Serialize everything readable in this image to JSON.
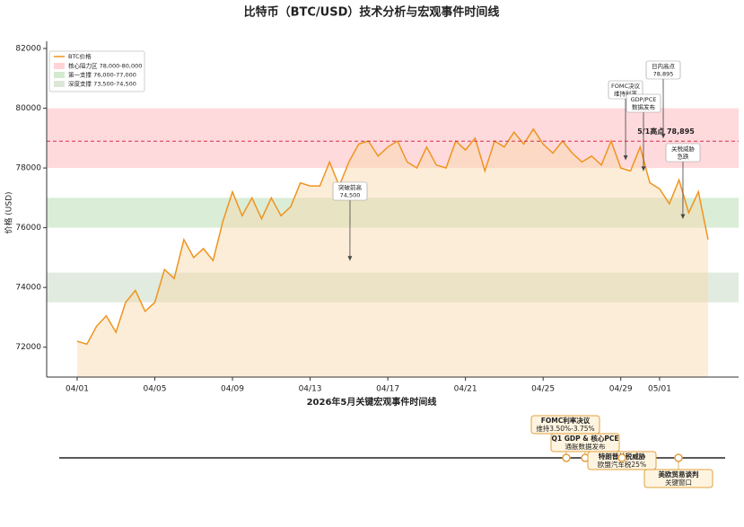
{
  "chart_data": {
    "type": "line",
    "title": "比特币（BTC/USD）技术分析与宏观事件时间线",
    "y_label": "价格 (USD)",
    "x_label": "2026年5月关键宏观事件时间线",
    "x": [
      0,
      0.5,
      1,
      1.5,
      2,
      2.5,
      3,
      3.5,
      4,
      4.5,
      5,
      5.5,
      6,
      6.5,
      7,
      7.5,
      8,
      8.5,
      9,
      9.5,
      10,
      10.5,
      11,
      11.5,
      12,
      12.5,
      13,
      13.5,
      14,
      14.5,
      15,
      15.5,
      16,
      16.5,
      17,
      17.5,
      18,
      18.5,
      19,
      19.5,
      20,
      20.5,
      21,
      21.5,
      22,
      22.5,
      23,
      23.5,
      24,
      24.5,
      25,
      25.5,
      26,
      26.5,
      27,
      27.5,
      28,
      28.5,
      29,
      29.5,
      30,
      30.5,
      31,
      31.5,
      32,
      32.5
    ],
    "series": [
      {
        "name": "BTC价格",
        "color": "#ee9420",
        "values": [
          72200,
          72100,
          72700,
          73050,
          72500,
          73500,
          73900,
          73200,
          73500,
          74600,
          74300,
          75600,
          75000,
          75300,
          74900,
          76200,
          77200,
          76400,
          77000,
          76300,
          77000,
          76400,
          76700,
          77500,
          77400,
          77400,
          78200,
          77400,
          78200,
          78800,
          78900,
          78400,
          78700,
          78900,
          78200,
          78000,
          78700,
          78100,
          78000,
          78900,
          78600,
          79000,
          77900,
          78900,
          78700,
          79200,
          78800,
          79300,
          78800,
          78500,
          78900,
          78500,
          78200,
          78400,
          78100,
          78900,
          78000,
          77900,
          78700,
          77500,
          77300,
          76800,
          77600,
          76500,
          77200,
          75600
        ]
      }
    ],
    "bands": [
      {
        "name": "核心阻力区 78,000-80,000",
        "range": [
          78000,
          80000
        ],
        "color": "#ffd4d6"
      },
      {
        "name": "第一支撑 76,000-77,000",
        "range": [
          76000,
          77000
        ],
        "color": "#d3ead0"
      },
      {
        "name": "深度支撑 73,500-74,500",
        "range": [
          73500,
          74500
        ],
        "color": "#dde7d9"
      }
    ],
    "ref_line": {
      "value": 78895,
      "label": "5/1高点 78,895",
      "color": "#d62d4a"
    },
    "annotations": [
      {
        "text": [
          "突破前高",
          "74,500"
        ],
        "x": 14.05,
        "y": 74900
      },
      {
        "text": [
          "FOMC决议",
          "维持利率"
        ],
        "x": 28.25,
        "y": 78270
      },
      {
        "text": [
          "GDP/PCE",
          "数据发布"
        ],
        "x": 29.17,
        "y": 77900
      },
      {
        "text": [
          "日内高点",
          "78,895"
        ],
        "x": 30.19,
        "y": 79000
      },
      {
        "text": [
          "关税威胁",
          "急跌"
        ],
        "x": 31.2,
        "y": 76300
      }
    ],
    "events": [
      {
        "text": [
          "FOMC利率决议",
          "维持3.50%-3.75%"
        ]
      },
      {
        "text": [
          "Q1 GDP & 核心PCE",
          "通胀数据发布"
        ]
      },
      {
        "text": [
          "特朗普关税威胁",
          "欧盟汽车税25%"
        ]
      },
      {
        "text": [
          "美欧贸易谈判",
          "关键窗口"
        ]
      }
    ],
    "xlim": [
      -1.57,
      34.07
    ],
    "xticks": [
      {
        "value": 0,
        "label": "04/01"
      },
      {
        "value": 4,
        "label": "04/05"
      },
      {
        "value": 8,
        "label": "04/09"
      },
      {
        "value": 12,
        "label": "04/13"
      },
      {
        "value": 16,
        "label": "04/17"
      },
      {
        "value": 20,
        "label": "04/21"
      },
      {
        "value": 24,
        "label": "04/25"
      },
      {
        "value": 28,
        "label": "04/29"
      },
      {
        "value": 30,
        "label": "05/01"
      }
    ],
    "ylim": [
      71000,
      82000
    ],
    "yticks": [
      72000,
      74000,
      76000,
      78000,
      80000,
      82000
    ]
  }
}
